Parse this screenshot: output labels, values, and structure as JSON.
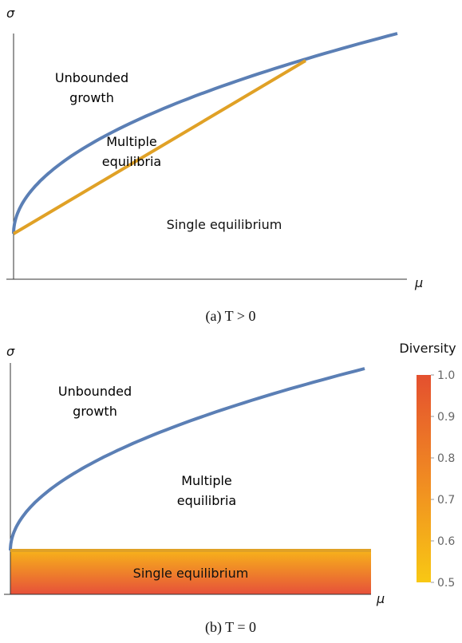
{
  "panel_a": {
    "y_label": "σ",
    "x_label": "μ",
    "regions": [
      "Unbounded growth",
      "Multiple equilibria",
      "Single equilibrium"
    ],
    "caption": "(a) T > 0"
  },
  "panel_b": {
    "y_label": "σ",
    "x_label": "μ",
    "regions": [
      "Unbounded growth",
      "Multiple equilibria",
      "Single equilibrium"
    ],
    "caption": "(b) T = 0",
    "colorbar": {
      "title": "Diversity",
      "lim": [
        0.5,
        1.0
      ],
      "ticks": [
        {
          "value": 1,
          "label": "1.0"
        },
        0.9,
        0.8,
        0.7,
        0.6,
        0.5
      ]
    }
  }
}
